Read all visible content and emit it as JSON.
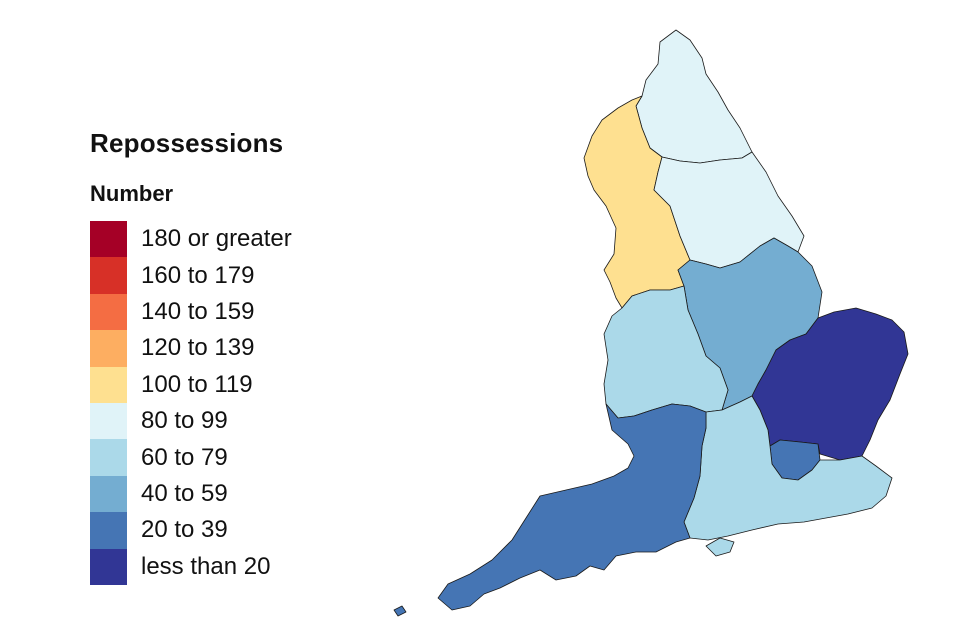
{
  "legend": {
    "title": "Repossessions",
    "subtitle": "Number",
    "bins": [
      {
        "label": "180 or greater",
        "color": "#a50026"
      },
      {
        "label": "160 to 179",
        "color": "#d73027"
      },
      {
        "label": "140 to 159",
        "color": "#f46d43"
      },
      {
        "label": "120 to 139",
        "color": "#fdae61"
      },
      {
        "label": "100 to 119",
        "color": "#fee090"
      },
      {
        "label": "80 to 99",
        "color": "#e0f3f8"
      },
      {
        "label": "60 to 79",
        "color": "#abd9e9"
      },
      {
        "label": "40 to 59",
        "color": "#74add1"
      },
      {
        "label": "20 to 39",
        "color": "#4575b4"
      },
      {
        "label": "less than 20",
        "color": "#313695"
      }
    ]
  },
  "regions": [
    {
      "id": "north-east",
      "bin": "80 to 99"
    },
    {
      "id": "north-west",
      "bin": "100 to 119"
    },
    {
      "id": "yorkshire-and-the-humber",
      "bin": "80 to 99"
    },
    {
      "id": "east-midlands",
      "bin": "40 to 59"
    },
    {
      "id": "west-midlands",
      "bin": "60 to 79"
    },
    {
      "id": "east-of-england",
      "bin": "less than 20"
    },
    {
      "id": "london",
      "bin": "20 to 39"
    },
    {
      "id": "south-east",
      "bin": "60 to 79"
    },
    {
      "id": "south-west",
      "bin": "20 to 39"
    }
  ]
}
